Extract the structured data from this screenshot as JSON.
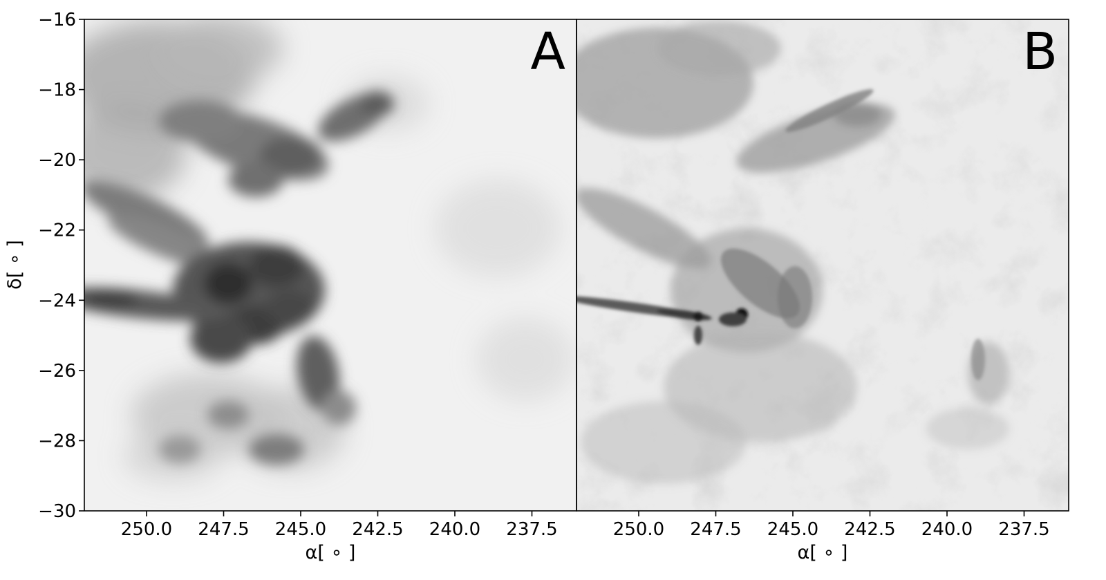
{
  "figure": {
    "panels": [
      {
        "label": "A",
        "description_kind": "smoothed grayscale intensity map"
      },
      {
        "label": "B",
        "description_kind": "high-resolution grayscale intensity map"
      }
    ],
    "y_axis": {
      "label": "δ[ ∘ ]",
      "ticks": [
        "−16",
        "−18",
        "−20",
        "−22",
        "−24",
        "−26",
        "−28",
        "−30"
      ]
    },
    "x_axis": {
      "label": "α[ ∘ ]",
      "ticks": [
        "250.0",
        "247.5",
        "245.0",
        "242.5",
        "240.0",
        "237.5"
      ]
    },
    "colors": {
      "frame": "#000000",
      "background": "#ffffff"
    }
  }
}
